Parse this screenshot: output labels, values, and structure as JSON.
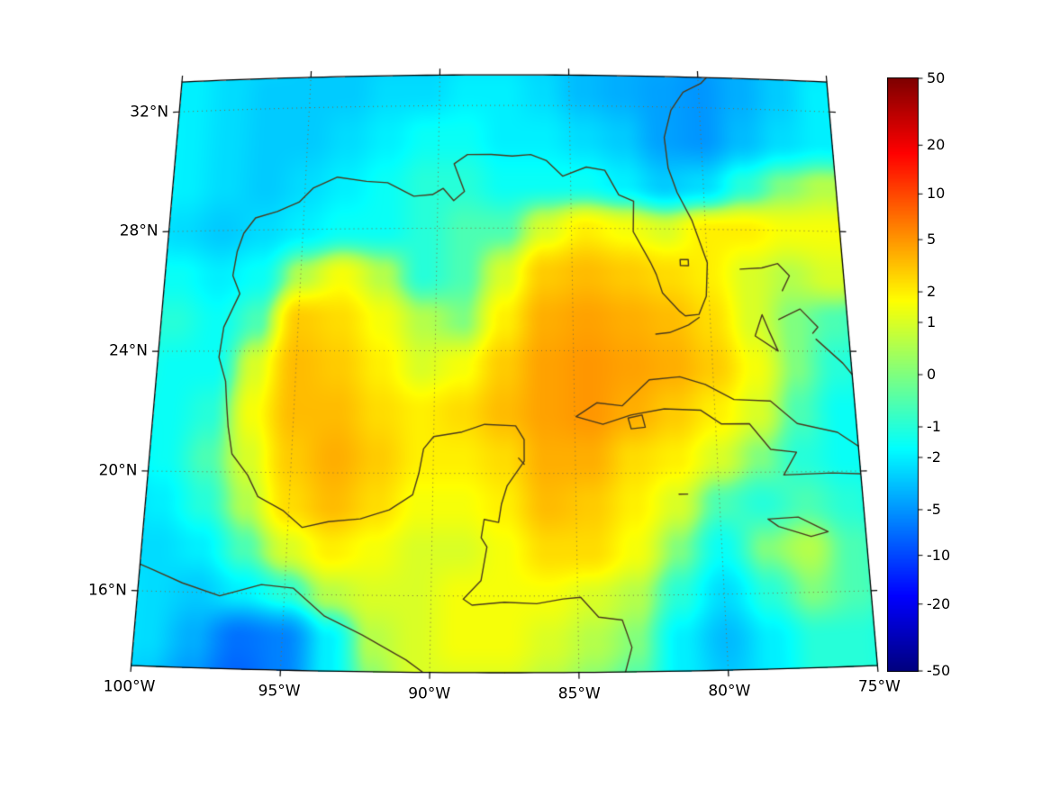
{
  "figure": {
    "background_color": "#ffffff",
    "coastline_color": "#4a3a1d",
    "gridline_color": "#7a6a45",
    "border_color": "#000000"
  },
  "chart_data": {
    "type": "heatmap",
    "title": "",
    "region": "Gulf of Mexico and western North Atlantic / Caribbean",
    "x_axis": {
      "tick_labels": [
        "100°W",
        "95°W",
        "90°W",
        "85°W",
        "80°W",
        "75°W"
      ],
      "tick_values": [
        -100,
        -95,
        -90,
        -85,
        -80,
        -75
      ],
      "range": [
        -100,
        -75
      ]
    },
    "y_axis": {
      "tick_labels": [
        "32°N",
        "28°N",
        "24°N",
        "20°N",
        "16°N"
      ],
      "tick_values": [
        32,
        28,
        24,
        20,
        16
      ],
      "range": [
        13.5,
        33
      ]
    },
    "colorbar": {
      "tick_labels": [
        "50",
        "20",
        "10",
        "5",
        "2",
        "1",
        "0",
        "-1",
        "-2",
        "-5",
        "-10",
        "-20",
        "-50"
      ],
      "tick_values": [
        50,
        20,
        10,
        5,
        2,
        1,
        0,
        -1,
        -2,
        -5,
        -10,
        -20,
        -50
      ],
      "vmin": -50,
      "vmax": 50,
      "scale": "symlog",
      "colormap": "jet",
      "position": "right"
    },
    "grid": {
      "lon_start": -101,
      "lon_step": 1.5,
      "ncols": 19,
      "lat_start": 34,
      "lat_step": -1.5,
      "nrows": 15,
      "values": [
        [
          -2,
          -2,
          -2.5,
          -2.5,
          -3,
          -3,
          -3,
          -3,
          -2.5,
          -2.5,
          -3,
          -3.5,
          -4,
          -4,
          -4.5,
          -4,
          -3,
          -2.5,
          -2
        ],
        [
          -2,
          -2,
          -2.5,
          -3,
          -3,
          -3,
          -2.5,
          -2.5,
          -2,
          -2,
          -2.5,
          -3.5,
          -4,
          -4.5,
          -5,
          -4,
          -3,
          -2,
          -1.5
        ],
        [
          -1.5,
          -2,
          -2.5,
          -3,
          -3,
          -2.5,
          -2,
          -1.5,
          -1.5,
          -2,
          -2,
          -2.5,
          -3,
          -4.5,
          -5,
          -3.5,
          -2.5,
          -2,
          -2
        ],
        [
          -1.5,
          -2,
          -2.5,
          -3,
          -2.5,
          -2,
          -1.5,
          -1,
          -1,
          -1.5,
          -1.5,
          -1.5,
          -2,
          -3,
          -2.5,
          -1,
          0,
          0.5,
          0.5
        ],
        [
          -2,
          -2.5,
          -3,
          -2.5,
          -2,
          -1.5,
          -1.5,
          -1,
          -0.5,
          -0.5,
          1,
          2,
          1.5,
          1,
          2,
          2,
          1.5,
          1.5,
          1.5
        ],
        [
          -1.5,
          -1.5,
          -2,
          -1.5,
          0.5,
          1.5,
          0.5,
          -1,
          -0.5,
          1,
          3,
          3.5,
          3,
          2.5,
          2,
          1,
          0.5,
          1,
          1
        ],
        [
          -1,
          -1,
          -1.5,
          -0.5,
          3,
          2.5,
          1.5,
          0.5,
          0,
          2,
          4,
          4.5,
          4,
          3.5,
          2.5,
          1,
          0,
          -0.5,
          -1
        ],
        [
          -1,
          -1.5,
          -1.5,
          1,
          3.5,
          3,
          2,
          1,
          1.5,
          3,
          4.5,
          5,
          4.5,
          4,
          3,
          1.5,
          0,
          -1,
          -1.5
        ],
        [
          -1.5,
          -1.5,
          -1,
          1.5,
          3.5,
          3.5,
          2.5,
          2,
          2.5,
          3.5,
          4.5,
          5,
          4,
          3,
          2,
          1,
          -0.5,
          -1.5,
          -1.5
        ],
        [
          -2,
          -1.5,
          -0.5,
          1,
          3,
          4,
          3,
          2,
          2,
          2.5,
          4,
          4,
          2.5,
          2,
          1,
          0,
          -1,
          -1.5,
          -1.5
        ],
        [
          -2.5,
          -2,
          -1,
          0.5,
          2.5,
          3.5,
          2.5,
          1.5,
          1.5,
          2,
          3.5,
          3,
          2,
          1,
          -0.5,
          -1,
          -0.5,
          -1,
          -1.5
        ],
        [
          -2.5,
          -2.5,
          -2,
          -0.5,
          1,
          2,
          1.5,
          1,
          1,
          1.5,
          2.5,
          2.5,
          1.5,
          0,
          -1.5,
          0,
          0.5,
          -0.5,
          -1
        ],
        [
          -2,
          -2.5,
          -3,
          -2,
          -1,
          0.5,
          1,
          1,
          1.5,
          1.5,
          1.5,
          1,
          0.5,
          -1,
          -2.5,
          -1,
          0,
          -0.5,
          -1
        ],
        [
          -2,
          -2.5,
          -4,
          -7,
          -6,
          -2,
          0.5,
          1,
          1.5,
          1.5,
          1,
          0.5,
          0,
          -2,
          -3.5,
          -2,
          -1,
          -1,
          -1.5
        ],
        [
          -2,
          -3,
          -5,
          -8,
          -6,
          -2,
          0,
          1,
          1,
          1,
          0.5,
          0,
          -0.5,
          -2,
          -3,
          -2,
          -1,
          -1,
          -1.5
        ]
      ]
    },
    "coastlines": [
      [
        [
          -79.2,
          33.4
        ],
        [
          -79.9,
          32.8
        ],
        [
          -80.6,
          32.5
        ],
        [
          -81.1,
          31.9
        ],
        [
          -81.4,
          31.0
        ],
        [
          -81.3,
          30.0
        ],
        [
          -81.0,
          29.2
        ],
        [
          -80.5,
          28.3
        ],
        [
          -80.0,
          26.9
        ],
        [
          -80.1,
          25.8
        ],
        [
          -80.4,
          25.2
        ],
        [
          -80.9,
          25.15
        ],
        [
          -81.1,
          25.3
        ],
        [
          -81.7,
          25.9
        ],
        [
          -81.9,
          26.5
        ],
        [
          -82.1,
          26.9
        ],
        [
          -82.7,
          27.9
        ],
        [
          -82.65,
          28.9
        ],
        [
          -83.2,
          29.1
        ],
        [
          -83.7,
          29.9
        ],
        [
          -84.4,
          30.0
        ],
        [
          -85.3,
          29.7
        ],
        [
          -85.9,
          30.2
        ],
        [
          -86.5,
          30.4
        ],
        [
          -87.2,
          30.35
        ],
        [
          -88.0,
          30.4
        ],
        [
          -88.9,
          30.4
        ],
        [
          -89.4,
          30.1
        ],
        [
          -89.0,
          29.2
        ],
        [
          -89.4,
          28.9
        ],
        [
          -89.8,
          29.3
        ],
        [
          -90.2,
          29.1
        ],
        [
          -90.9,
          29.05
        ],
        [
          -91.9,
          29.5
        ],
        [
          -92.7,
          29.55
        ],
        [
          -93.8,
          29.7
        ],
        [
          -94.7,
          29.35
        ],
        [
          -95.2,
          28.9
        ],
        [
          -96.0,
          28.6
        ],
        [
          -96.8,
          28.4
        ],
        [
          -97.2,
          27.9
        ],
        [
          -97.4,
          27.3
        ],
        [
          -97.5,
          26.5
        ],
        [
          -97.2,
          25.9
        ],
        [
          -97.7,
          24.8
        ],
        [
          -97.8,
          23.8
        ],
        [
          -97.5,
          23.0
        ],
        [
          -97.4,
          22.2
        ],
        [
          -97.3,
          21.5
        ],
        [
          -97.1,
          20.6
        ],
        [
          -96.5,
          19.9
        ],
        [
          -96.1,
          19.2
        ],
        [
          -95.2,
          18.75
        ],
        [
          -94.5,
          18.2
        ],
        [
          -93.6,
          18.4
        ],
        [
          -92.5,
          18.5
        ],
        [
          -91.5,
          18.8
        ],
        [
          -90.7,
          19.3
        ],
        [
          -90.5,
          20.0
        ],
        [
          -90.35,
          20.8
        ],
        [
          -90.0,
          21.2
        ],
        [
          -89.0,
          21.35
        ],
        [
          -88.2,
          21.6
        ],
        [
          -87.1,
          21.55
        ],
        [
          -86.8,
          21.1
        ],
        [
          -86.8,
          20.4
        ],
        [
          -87.4,
          19.6
        ],
        [
          -87.6,
          19.0
        ],
        [
          -87.7,
          18.4
        ],
        [
          -88.2,
          18.5
        ],
        [
          -88.3,
          17.9
        ],
        [
          -88.1,
          17.6
        ],
        [
          -88.3,
          16.5
        ],
        [
          -88.9,
          15.9
        ],
        [
          -88.6,
          15.7
        ],
        [
          -87.5,
          15.8
        ],
        [
          -86.4,
          15.75
        ],
        [
          -85.5,
          15.9
        ],
        [
          -84.9,
          15.95
        ],
        [
          -84.3,
          15.3
        ],
        [
          -83.5,
          15.2
        ],
        [
          -83.2,
          14.3
        ],
        [
          -83.5,
          13.3
        ]
      ],
      [
        [
          -100.8,
          17.2
        ],
        [
          -99.5,
          16.7
        ],
        [
          -98.5,
          16.3
        ],
        [
          -97.2,
          15.9
        ],
        [
          -95.8,
          16.3
        ],
        [
          -94.7,
          16.2
        ],
        [
          -93.6,
          15.3
        ],
        [
          -92.3,
          14.7
        ],
        [
          -90.8,
          13.9
        ],
        [
          -89.8,
          13.2
        ]
      ],
      [
        [
          -84.95,
          21.85
        ],
        [
          -84.2,
          22.3
        ],
        [
          -83.3,
          22.2
        ],
        [
          -82.3,
          23.05
        ],
        [
          -81.2,
          23.15
        ],
        [
          -80.3,
          22.9
        ],
        [
          -79.3,
          22.4
        ],
        [
          -78.0,
          22.35
        ],
        [
          -77.1,
          21.6
        ],
        [
          -75.7,
          21.3
        ],
        [
          -74.15,
          20.25
        ],
        [
          -74.8,
          19.9
        ],
        [
          -76.0,
          19.95
        ],
        [
          -77.7,
          19.9
        ],
        [
          -77.2,
          20.65
        ],
        [
          -78.1,
          20.75
        ],
        [
          -78.8,
          21.6
        ],
        [
          -79.8,
          21.6
        ],
        [
          -80.5,
          22.05
        ],
        [
          -81.8,
          22.1
        ],
        [
          -83.0,
          21.9
        ],
        [
          -84.0,
          21.6
        ],
        [
          -84.95,
          21.85
        ]
      ],
      [
        [
          -83.1,
          21.8
        ],
        [
          -82.6,
          21.9
        ],
        [
          -82.5,
          21.5
        ],
        [
          -83.0,
          21.45
        ],
        [
          -83.1,
          21.8
        ]
      ],
      [
        [
          -78.8,
          26.7
        ],
        [
          -78.0,
          26.75
        ],
        [
          -77.4,
          26.9
        ],
        [
          -77.0,
          26.5
        ],
        [
          -77.3,
          26.0
        ]
      ],
      [
        [
          -78.1,
          25.2
        ],
        [
          -77.9,
          24.7
        ],
        [
          -77.6,
          24.0
        ],
        [
          -78.4,
          24.5
        ],
        [
          -78.1,
          25.2
        ]
      ],
      [
        [
          -77.5,
          25.05
        ],
        [
          -76.7,
          25.4
        ],
        [
          -76.1,
          24.8
        ],
        [
          -76.3,
          24.6
        ]
      ],
      [
        [
          -76.2,
          24.4
        ],
        [
          -75.3,
          23.6
        ],
        [
          -74.9,
          23.1
        ]
      ],
      [
        [
          -74.6,
          22.8
        ],
        [
          -74.1,
          22.35
        ]
      ],
      [
        [
          -78.35,
          18.45
        ],
        [
          -77.3,
          18.5
        ],
        [
          -76.3,
          18.0
        ],
        [
          -76.9,
          17.85
        ],
        [
          -78.0,
          18.2
        ],
        [
          -78.35,
          18.45
        ]
      ],
      [
        [
          -74.0,
          19.75
        ],
        [
          -74.45,
          19.6
        ],
        [
          -74.0,
          19.35
        ]
      ],
      [
        [
          -74.0,
          18.3
        ],
        [
          -74.45,
          18.4
        ],
        [
          -74.0,
          18.65
        ]
      ],
      [
        [
          -81.4,
          19.3
        ],
        [
          -81.1,
          19.3
        ]
      ],
      [
        [
          -87.0,
          20.5
        ],
        [
          -86.8,
          20.3
        ]
      ],
      [
        [
          -80.4,
          25.1
        ],
        [
          -80.8,
          24.85
        ],
        [
          -81.5,
          24.6
        ],
        [
          -82.0,
          24.55
        ]
      ],
      [
        [
          -81.0,
          27.0
        ],
        [
          -80.7,
          27.0
        ],
        [
          -80.7,
          26.8
        ],
        [
          -81.0,
          26.8
        ],
        [
          -81.0,
          27.0
        ]
      ]
    ],
    "gridlines": {
      "lat_lines": [
        16,
        20,
        24,
        28,
        32
      ],
      "lon_lines": [
        -95,
        -90,
        -85,
        -80
      ],
      "style": "dotted"
    }
  }
}
